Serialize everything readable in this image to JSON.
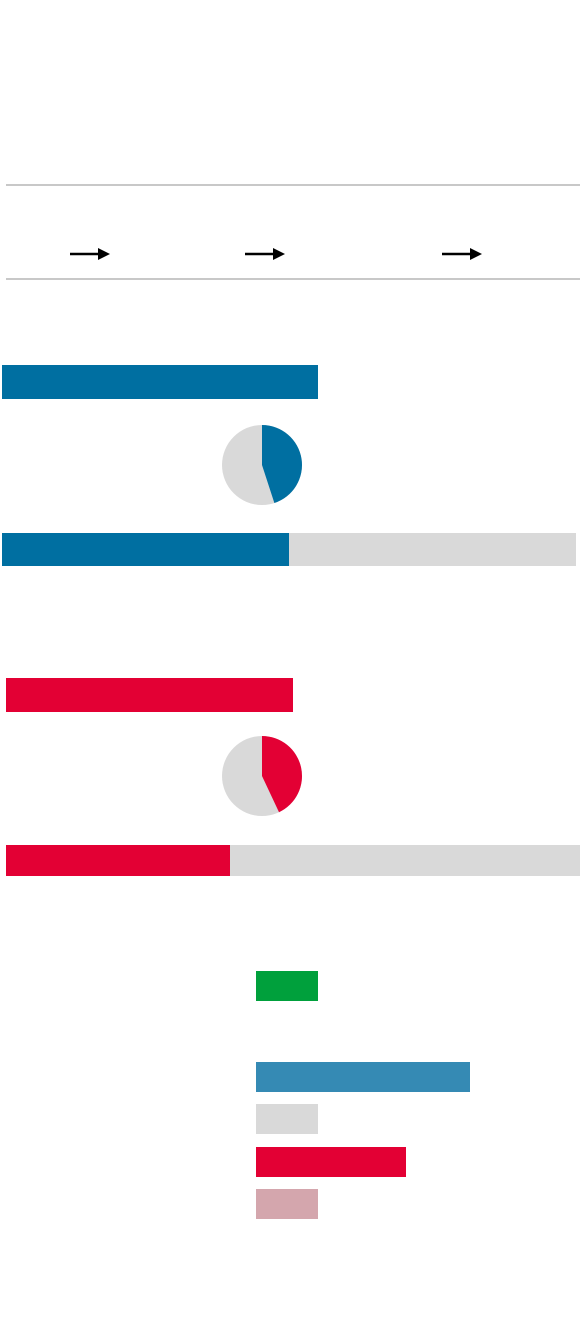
{
  "header": {
    "arrows": [
      {
        "icon": "right-arrow-icon"
      },
      {
        "icon": "right-arrow-icon"
      },
      {
        "icon": "right-arrow-icon"
      }
    ]
  },
  "colors": {
    "blue": "#006fa1",
    "red": "#e30034",
    "green": "#00a03c",
    "light_blue": "#358ab4",
    "grey": "#d9d9d9",
    "pink": "#d4a6ad"
  },
  "sections": [
    {
      "color": "#006fa1",
      "top_bar_share": 0.55,
      "pie_share": 0.45,
      "progress_share": 0.5
    },
    {
      "color": "#e30034",
      "top_bar_share": 0.5,
      "pie_share": 0.43,
      "progress_share": 0.39
    }
  ],
  "legend": {
    "items": [
      {
        "color": "#00a03c",
        "share": 0.29
      },
      {
        "color": "#358ab4",
        "share": 1.0
      },
      {
        "color": "#d9d9d9",
        "share": 0.29
      },
      {
        "color": "#e30034",
        "share": 0.7
      },
      {
        "color": "#d4a6ad",
        "share": 0.29
      }
    ]
  }
}
